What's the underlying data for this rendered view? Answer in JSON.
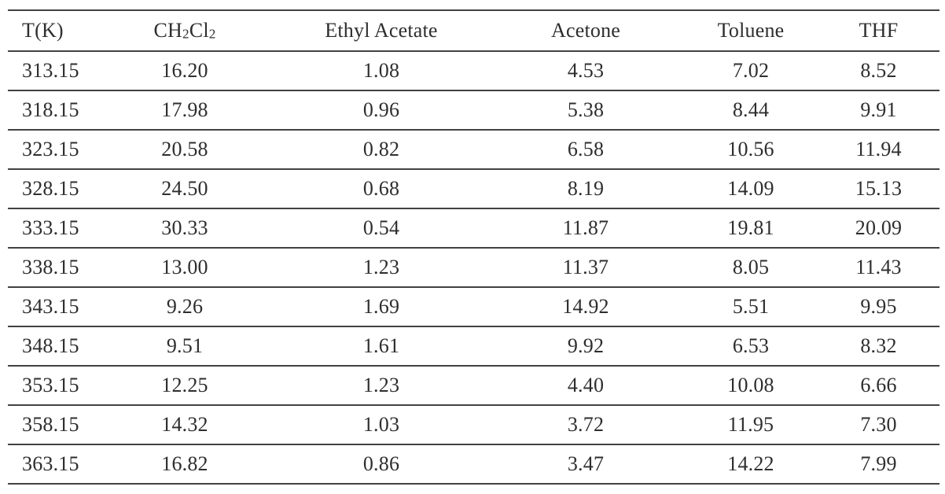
{
  "page": {
    "background_color": "#ffffff",
    "text_color": "#2e2e2e",
    "rule_color": "#424242"
  },
  "table": {
    "columns": [
      "T(K)",
      "CH2Cl2",
      "Ethyl Acetate",
      "Acetone",
      "Toluene",
      "THF"
    ],
    "header_rich": {
      "ch2cl2": [
        "CH",
        "2",
        "Cl",
        "2"
      ]
    },
    "rows": [
      [
        "313.15",
        "16.20",
        "1.08",
        "4.53",
        "7.02",
        "8.52"
      ],
      [
        "318.15",
        "17.98",
        "0.96",
        "5.38",
        "8.44",
        "9.91"
      ],
      [
        "323.15",
        "20.58",
        "0.82",
        "6.58",
        "10.56",
        "11.94"
      ],
      [
        "328.15",
        "24.50",
        "0.68",
        "8.19",
        "14.09",
        "15.13"
      ],
      [
        "333.15",
        "30.33",
        "0.54",
        "11.87",
        "19.81",
        "20.09"
      ],
      [
        "338.15",
        "13.00",
        "1.23",
        "11.37",
        "8.05",
        "11.43"
      ],
      [
        "343.15",
        "9.26",
        "1.69",
        "14.92",
        "5.51",
        "9.95"
      ],
      [
        "348.15",
        "9.51",
        "1.61",
        "9.92",
        "6.53",
        "8.32"
      ],
      [
        "353.15",
        "12.25",
        "1.23",
        "4.40",
        "10.08",
        "6.66"
      ],
      [
        "358.15",
        "14.32",
        "1.03",
        "3.72",
        "11.95",
        "7.30"
      ],
      [
        "363.15",
        "16.82",
        "0.86",
        "3.47",
        "14.22",
        "7.99"
      ]
    ]
  }
}
